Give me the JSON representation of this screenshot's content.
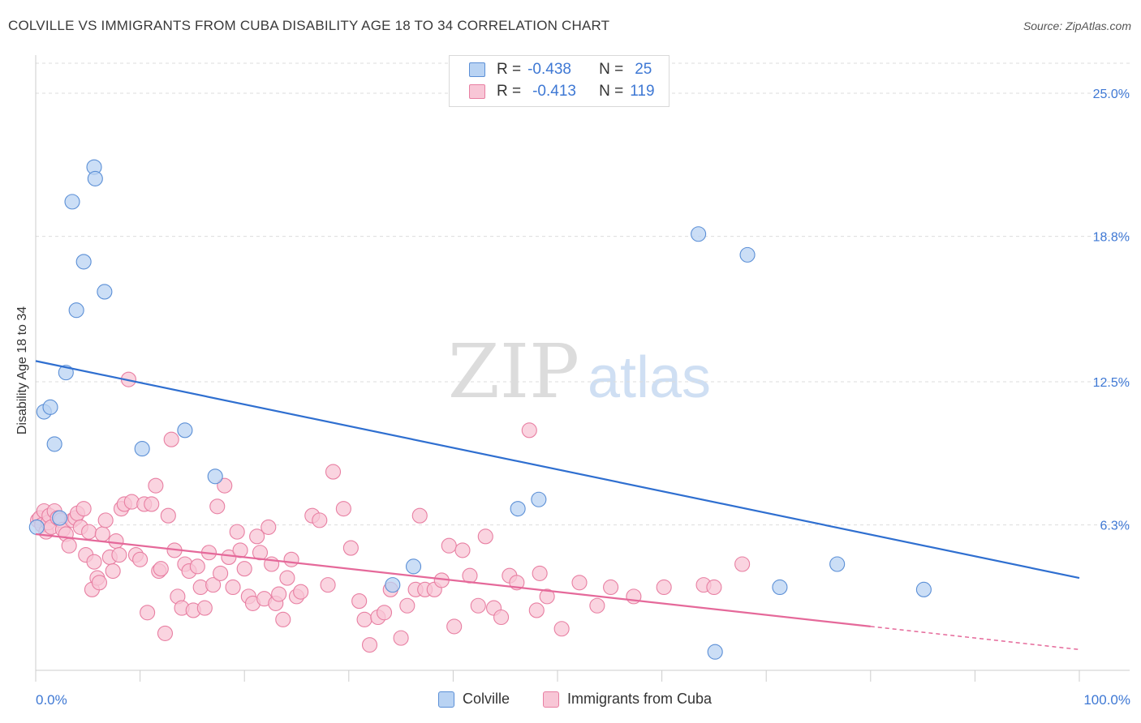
{
  "title": "COLVILLE VS IMMIGRANTS FROM CUBA DISABILITY AGE 18 TO 34 CORRELATION CHART",
  "source": "Source: ZipAtlas.com",
  "watermark": {
    "zip": "ZIP",
    "atlas": "atlas"
  },
  "legend": {
    "rows": [
      {
        "r_label": "R =",
        "r_value": "-0.438",
        "n_label": "N =",
        "n_value": "25"
      },
      {
        "r_label": "R =",
        "r_value": "-0.413",
        "n_label": "N =",
        "n_value": "119"
      }
    ]
  },
  "bottom_legend": [
    "Colville",
    "Immigrants from Cuba"
  ],
  "colors": {
    "colville_fill": "#b9d3f3",
    "colville_stroke": "#5b8fd6",
    "colville_line": "#2f6fd0",
    "cuba_fill": "#f8c6d6",
    "cuba_stroke": "#e87fa2",
    "cuba_line": "#e5699a",
    "tick_label": "#3e78d4",
    "grid": "#dddddd"
  },
  "chart_data": {
    "type": "scatter",
    "title": "COLVILLE VS IMMIGRANTS FROM CUBA DISABILITY AGE 18 TO 34 CORRELATION CHART",
    "xlabel": "",
    "ylabel": "Disability Age 18 to 34",
    "xlim": [
      0,
      100
    ],
    "ylim": [
      0,
      26.3
    ],
    "x_tick_labels": [
      "0.0%",
      "100.0%"
    ],
    "y_ticks": [
      6.3,
      12.5,
      18.8,
      25.0
    ],
    "y_tick_labels": [
      "6.3%",
      "12.5%",
      "18.8%",
      "25.0%"
    ],
    "grid": "horizontal dashed",
    "legend_position": "top-center",
    "series": [
      {
        "name": "Colville",
        "r": -0.438,
        "n": 25,
        "trend": {
          "x": [
            0,
            100
          ],
          "y": [
            13.4,
            4.0
          ]
        },
        "points": [
          [
            0.1,
            6.2
          ],
          [
            0.8,
            11.2
          ],
          [
            1.4,
            11.4
          ],
          [
            1.8,
            9.8
          ],
          [
            2.3,
            6.6
          ],
          [
            2.9,
            12.9
          ],
          [
            3.5,
            20.3
          ],
          [
            3.9,
            15.6
          ],
          [
            4.6,
            17.7
          ],
          [
            5.6,
            21.8
          ],
          [
            5.7,
            21.3
          ],
          [
            6.6,
            16.4
          ],
          [
            10.2,
            9.6
          ],
          [
            14.3,
            10.4
          ],
          [
            17.2,
            8.4
          ],
          [
            34.2,
            3.7
          ],
          [
            36.2,
            4.5
          ],
          [
            46.2,
            7.0
          ],
          [
            48.2,
            7.4
          ],
          [
            63.5,
            18.9
          ],
          [
            65.1,
            0.8
          ],
          [
            68.2,
            18.0
          ],
          [
            71.3,
            3.6
          ],
          [
            76.8,
            4.6
          ],
          [
            85.1,
            3.5
          ]
        ]
      },
      {
        "name": "Immigrants from Cuba",
        "r": -0.413,
        "n": 119,
        "trend": {
          "x": [
            0,
            80
          ],
          "y": [
            5.9,
            1.9
          ]
        },
        "trend_extension": {
          "x": [
            80,
            100
          ],
          "y": [
            1.9,
            0.9
          ]
        },
        "points": [
          [
            0.2,
            6.5
          ],
          [
            0.4,
            6.6
          ],
          [
            0.6,
            6.3
          ],
          [
            0.8,
            6.9
          ],
          [
            1.0,
            6.0
          ],
          [
            1.2,
            6.4
          ],
          [
            1.3,
            6.7
          ],
          [
            1.5,
            6.2
          ],
          [
            1.8,
            6.9
          ],
          [
            2.1,
            6.6
          ],
          [
            2.4,
            6.5
          ],
          [
            2.6,
            6.1
          ],
          [
            2.9,
            5.9
          ],
          [
            3.2,
            5.4
          ],
          [
            3.5,
            6.5
          ],
          [
            3.8,
            6.6
          ],
          [
            4.0,
            6.8
          ],
          [
            4.3,
            6.2
          ],
          [
            4.6,
            7.0
          ],
          [
            4.8,
            5.0
          ],
          [
            5.1,
            6.0
          ],
          [
            5.4,
            3.5
          ],
          [
            5.6,
            4.7
          ],
          [
            5.9,
            4.0
          ],
          [
            6.1,
            3.8
          ],
          [
            6.4,
            5.9
          ],
          [
            6.7,
            6.5
          ],
          [
            7.1,
            4.9
          ],
          [
            7.4,
            4.3
          ],
          [
            7.7,
            5.6
          ],
          [
            8.0,
            5.0
          ],
          [
            8.2,
            7.0
          ],
          [
            8.5,
            7.2
          ],
          [
            8.9,
            12.6
          ],
          [
            9.2,
            7.3
          ],
          [
            9.6,
            5.0
          ],
          [
            10.0,
            4.8
          ],
          [
            10.4,
            7.2
          ],
          [
            10.7,
            2.5
          ],
          [
            11.1,
            7.2
          ],
          [
            11.5,
            8.0
          ],
          [
            11.8,
            4.3
          ],
          [
            12.0,
            4.4
          ],
          [
            12.4,
            1.6
          ],
          [
            12.7,
            6.7
          ],
          [
            13.0,
            10.0
          ],
          [
            13.3,
            5.2
          ],
          [
            13.6,
            3.2
          ],
          [
            14.0,
            2.7
          ],
          [
            14.3,
            4.6
          ],
          [
            14.7,
            4.3
          ],
          [
            15.1,
            2.6
          ],
          [
            15.5,
            4.5
          ],
          [
            15.8,
            3.6
          ],
          [
            16.2,
            2.7
          ],
          [
            16.6,
            5.1
          ],
          [
            17.0,
            3.7
          ],
          [
            17.4,
            7.1
          ],
          [
            17.7,
            4.2
          ],
          [
            18.1,
            8.0
          ],
          [
            18.5,
            4.9
          ],
          [
            18.9,
            3.6
          ],
          [
            19.3,
            6.0
          ],
          [
            19.6,
            5.2
          ],
          [
            20.0,
            4.4
          ],
          [
            20.4,
            3.2
          ],
          [
            20.8,
            2.9
          ],
          [
            21.2,
            5.8
          ],
          [
            21.5,
            5.1
          ],
          [
            21.9,
            3.1
          ],
          [
            22.3,
            6.2
          ],
          [
            22.6,
            4.6
          ],
          [
            23.0,
            2.9
          ],
          [
            23.3,
            3.3
          ],
          [
            23.7,
            2.2
          ],
          [
            24.1,
            4.0
          ],
          [
            24.5,
            4.8
          ],
          [
            25.0,
            3.2
          ],
          [
            25.4,
            3.4
          ],
          [
            26.5,
            6.7
          ],
          [
            27.2,
            6.5
          ],
          [
            28.0,
            3.7
          ],
          [
            28.5,
            8.6
          ],
          [
            29.5,
            7.0
          ],
          [
            30.2,
            5.3
          ],
          [
            31.0,
            3.0
          ],
          [
            31.5,
            2.2
          ],
          [
            32.0,
            1.1
          ],
          [
            32.8,
            2.3
          ],
          [
            33.4,
            2.5
          ],
          [
            34.0,
            3.5
          ],
          [
            35.0,
            1.4
          ],
          [
            35.6,
            2.8
          ],
          [
            36.4,
            3.5
          ],
          [
            36.8,
            6.7
          ],
          [
            37.3,
            3.5
          ],
          [
            38.2,
            3.5
          ],
          [
            38.9,
            3.9
          ],
          [
            39.6,
            5.4
          ],
          [
            40.1,
            1.9
          ],
          [
            40.9,
            5.2
          ],
          [
            41.6,
            4.1
          ],
          [
            42.4,
            2.8
          ],
          [
            43.1,
            5.8
          ],
          [
            43.9,
            2.7
          ],
          [
            44.6,
            2.3
          ],
          [
            45.4,
            4.1
          ],
          [
            46.1,
            3.8
          ],
          [
            47.3,
            10.4
          ],
          [
            48.0,
            2.6
          ],
          [
            48.3,
            4.2
          ],
          [
            49.0,
            3.2
          ],
          [
            50.4,
            1.8
          ],
          [
            52.1,
            3.8
          ],
          [
            53.8,
            2.8
          ],
          [
            55.1,
            3.6
          ],
          [
            57.3,
            3.2
          ],
          [
            60.2,
            3.6
          ],
          [
            64.0,
            3.7
          ],
          [
            65.0,
            3.6
          ],
          [
            67.7,
            4.6
          ]
        ]
      }
    ]
  }
}
